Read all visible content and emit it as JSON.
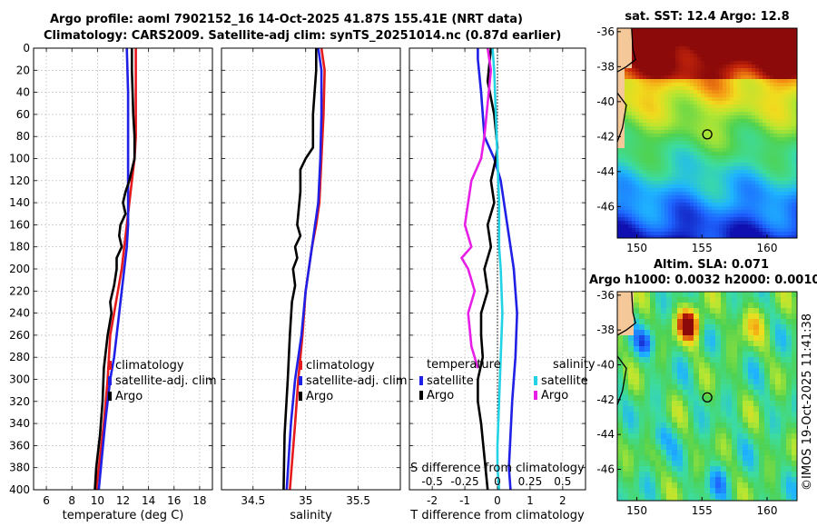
{
  "title": {
    "line1": "Argo profile: aoml 7902152_16 14-Oct-2025 41.87S 155.41E (NRT data)",
    "line2": "Climatology: CARS2009. Satellite-adj clim: synTS_20251014.nc (0.87d earlier)"
  },
  "watermark": "©IMOS 19-Oct-2025 11:41:38",
  "colors": {
    "climatology": "#e41a1c",
    "satellite": "#1f1fe6",
    "argo": "#000000",
    "sat_salinity": "#22d3e6",
    "argo_salinity": "#e61ee6"
  },
  "chart_data": [
    {
      "type": "line",
      "name": "temperature",
      "xlabel": "temperature (deg C)",
      "xlim": [
        5,
        19
      ],
      "xticks": [
        6,
        8,
        10,
        12,
        14,
        16,
        18
      ],
      "ylim": [
        400,
        0
      ],
      "yticks": [
        0,
        20,
        40,
        60,
        80,
        100,
        120,
        140,
        160,
        180,
        200,
        220,
        240,
        260,
        280,
        300,
        320,
        340,
        360,
        380,
        400
      ],
      "legend": [
        "climatology",
        "satellite-adj. clim",
        "Argo"
      ],
      "series": [
        {
          "name": "climatology",
          "color": "climatology",
          "x": [
            13.0,
            13.0,
            13.0,
            12.9,
            12.7,
            12.5,
            12.3,
            12.1,
            11.9,
            11.6,
            11.3,
            11.0,
            10.8,
            10.5,
            10.2,
            9.9
          ],
          "y": [
            0,
            40,
            80,
            100,
            120,
            140,
            160,
            180,
            200,
            220,
            240,
            260,
            300,
            340,
            370,
            400
          ]
        },
        {
          "name": "satellite-adj. clim",
          "color": "satellite",
          "x": [
            12.3,
            12.4,
            12.4,
            12.4,
            12.4,
            12.4,
            12.4,
            12.3,
            12.1,
            11.9,
            11.7,
            11.5,
            11.3,
            11.0,
            10.6,
            10.1
          ],
          "y": [
            0,
            40,
            80,
            100,
            120,
            140,
            160,
            180,
            200,
            220,
            240,
            260,
            280,
            300,
            340,
            400
          ]
        },
        {
          "name": "Argo",
          "color": "argo",
          "x": [
            12.7,
            12.7,
            12.8,
            12.9,
            12.9,
            12.7,
            12.5,
            12.2,
            12.0,
            12.2,
            11.8,
            11.7,
            11.9,
            11.5,
            11.5,
            11.3,
            11.0,
            11.1,
            10.8,
            10.5,
            10.4,
            10.2,
            9.9,
            9.8
          ],
          "y": [
            0,
            20,
            60,
            80,
            100,
            110,
            120,
            130,
            140,
            150,
            160,
            170,
            180,
            190,
            200,
            215,
            230,
            240,
            260,
            290,
            320,
            350,
            380,
            400
          ]
        }
      ]
    },
    {
      "type": "line",
      "name": "salinity",
      "xlabel": "salinity",
      "xlim": [
        34.2,
        35.9
      ],
      "xticks": [
        34.5,
        35,
        35.5
      ],
      "ylim": [
        400,
        0
      ],
      "legend": [
        "climatology",
        "satellite-adj. clim",
        "Argo"
      ],
      "series": [
        {
          "name": "climatology",
          "color": "climatology",
          "x": [
            35.15,
            35.18,
            35.17,
            35.15,
            35.13,
            35.1,
            35.06,
            35.03,
            35.0,
            34.97,
            34.93,
            34.9,
            34.85
          ],
          "y": [
            0,
            20,
            60,
            100,
            140,
            160,
            180,
            200,
            220,
            260,
            300,
            340,
            400
          ]
        },
        {
          "name": "satellite-adj. clim",
          "color": "satellite",
          "x": [
            35.12,
            35.15,
            35.15,
            35.14,
            35.12,
            35.09,
            35.06,
            35.03,
            35.0,
            34.96,
            34.9,
            34.86,
            34.82
          ],
          "y": [
            0,
            20,
            60,
            100,
            140,
            160,
            180,
            200,
            220,
            260,
            300,
            340,
            400
          ]
        },
        {
          "name": "Argo",
          "color": "argo",
          "x": [
            35.1,
            35.1,
            35.07,
            35.07,
            35.0,
            34.95,
            34.95,
            34.93,
            34.92,
            34.95,
            34.9,
            34.92,
            34.88,
            34.9,
            34.87,
            34.85,
            34.83,
            34.8,
            34.79
          ],
          "y": [
            0,
            20,
            60,
            90,
            100,
            110,
            130,
            150,
            160,
            170,
            180,
            190,
            200,
            215,
            230,
            260,
            300,
            350,
            400
          ]
        }
      ]
    },
    {
      "type": "line",
      "name": "difference",
      "xlabel": "T difference from climatology",
      "xlim": [
        -2.7,
        2.7
      ],
      "xticks": [
        -2,
        -1,
        0,
        1,
        2
      ],
      "secondary_xlabel": "S difference from climatology",
      "secondary_xticks": [
        "-0.5",
        "-0.25",
        "0",
        "0.25",
        "0.5"
      ],
      "ylim": [
        400,
        0
      ],
      "legend": {
        "temperature": [
          "satellite",
          "Argo"
        ],
        "salinity": [
          "satellite",
          "Argo"
        ]
      },
      "series": [
        {
          "name": "satellite T",
          "color": "satellite",
          "x": [
            -0.6,
            -0.6,
            -0.5,
            -0.45,
            -0.4,
            -0.1,
            0.1,
            0.2,
            0.3,
            0.4,
            0.5,
            0.55,
            0.6,
            0.55,
            0.5,
            0.45,
            0.4,
            0.35,
            0.4
          ],
          "y": [
            0,
            10,
            40,
            60,
            80,
            100,
            120,
            140,
            160,
            180,
            200,
            220,
            240,
            280,
            300,
            320,
            350,
            380,
            400
          ]
        },
        {
          "name": "Argo T",
          "color": "argo",
          "x": [
            -0.2,
            -0.3,
            -0.1,
            0.0,
            -0.05,
            -0.2,
            -0.1,
            -0.3,
            -0.2,
            -0.4,
            -0.3,
            -0.5,
            -0.5,
            -0.45,
            -0.6,
            -0.6,
            -0.5,
            -0.4,
            -0.3
          ],
          "y": [
            0,
            30,
            60,
            90,
            100,
            120,
            140,
            160,
            180,
            200,
            220,
            240,
            260,
            280,
            300,
            320,
            340,
            370,
            400
          ]
        },
        {
          "name": "satellite S",
          "color": "sat_salinity",
          "x": [
            -0.15,
            -0.1,
            -0.05,
            0.0,
            0.05,
            0.05,
            0.1,
            0.15,
            0.1,
            0.05,
            0.0,
            0.0,
            0.05
          ],
          "y": [
            0,
            20,
            60,
            100,
            140,
            180,
            200,
            240,
            280,
            320,
            360,
            380,
            400
          ]
        },
        {
          "name": "Argo S",
          "color": "argo_salinity",
          "x": [
            -0.3,
            -0.2,
            -0.3,
            -0.4,
            -0.5,
            -0.8,
            -0.9,
            -1.0,
            -0.8,
            -1.1,
            -0.9,
            -0.7,
            -0.9,
            -0.8,
            -0.6
          ],
          "y": [
            0,
            20,
            50,
            80,
            100,
            120,
            140,
            160,
            180,
            190,
            200,
            220,
            240,
            270,
            290
          ]
        }
      ]
    },
    {
      "type": "heatmap",
      "name": "sst_map",
      "title": "sat. SST: 12.4 Argo: 12.8",
      "xticks": [
        150,
        155,
        160
      ],
      "yticks": [
        -36,
        -38,
        -40,
        -42,
        -44,
        -46
      ],
      "xlim": [
        148.5,
        162.3
      ],
      "ylim": [
        -47.8,
        -35.8
      ],
      "marker": {
        "lon": 155.41,
        "lat": -41.87
      }
    },
    {
      "type": "heatmap",
      "name": "sla_map",
      "title_line1": "Altim. SLA: 0.071",
      "title_line2": "Argo h1000: 0.0032 h2000: 0.0010",
      "xticks": [
        150,
        155,
        160
      ],
      "yticks": [
        -36,
        -38,
        -40,
        -42,
        -44,
        -46
      ],
      "xlim": [
        148.5,
        162.3
      ],
      "ylim": [
        -47.8,
        -35.8
      ],
      "marker": {
        "lon": 155.41,
        "lat": -41.87
      }
    }
  ]
}
